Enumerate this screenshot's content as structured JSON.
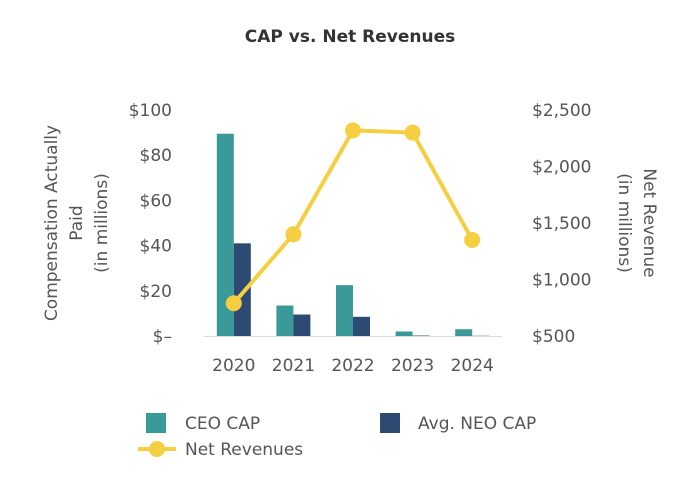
{
  "chart_data": {
    "type": "bar",
    "title": "CAP vs. Net Revenues",
    "categories": [
      "2020",
      "2021",
      "2022",
      "2023",
      "2024"
    ],
    "left_axis": {
      "label_lines": [
        "Compensation Actually",
        "Paid",
        "(in millions)"
      ],
      "range": [
        0,
        100
      ],
      "ticks": [
        {
          "value": 0,
          "label": "$–"
        },
        {
          "value": 20,
          "label": "$20"
        },
        {
          "value": 40,
          "label": "$40"
        },
        {
          "value": 60,
          "label": "$60"
        },
        {
          "value": 80,
          "label": "$80"
        },
        {
          "value": 100,
          "label": "$100"
        }
      ]
    },
    "right_axis": {
      "label_lines": [
        "Net Revenue",
        "(in millions)"
      ],
      "range": [
        500,
        2500
      ],
      "ticks": [
        {
          "value": 500,
          "label": "$500"
        },
        {
          "value": 1000,
          "label": "$1,000"
        },
        {
          "value": 1500,
          "label": "$1,500"
        },
        {
          "value": 2000,
          "label": "$2,000"
        },
        {
          "value": 2500,
          "label": "$2,500"
        }
      ]
    },
    "series": [
      {
        "name": "CEO CAP",
        "type": "bar",
        "axis": "left",
        "color": "#3A9A9A",
        "values": [
          89.5,
          13.5,
          22.5,
          2,
          3
        ]
      },
      {
        "name": "Avg. NEO CAP",
        "type": "bar",
        "axis": "left",
        "color": "#2C4A72",
        "values": [
          41,
          9.5,
          8.5,
          0.2,
          0.1
        ]
      },
      {
        "name": "Net Revenues",
        "type": "line",
        "axis": "right",
        "color": "#F5CE42",
        "values": [
          790,
          1400,
          2320,
          2300,
          1350
        ]
      }
    ],
    "grid": false,
    "legend_position": "bottom"
  }
}
